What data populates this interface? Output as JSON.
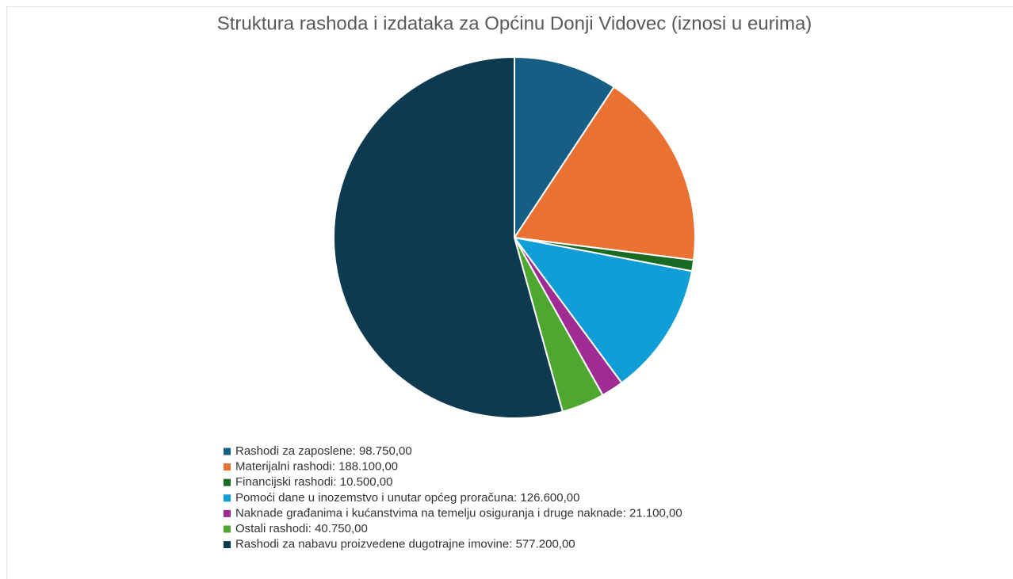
{
  "chart_data": {
    "type": "pie",
    "title": "Struktura rashoda i izdataka za Općinu Donji Vidovec (iznosi u eurima)",
    "categories": [
      "Rashodi za zaposlene",
      "Materijalni rashodi",
      "Financijski rashodi",
      "Pomoći dane u inozemstvo i unutar općeg proračuna",
      "Naknade građanima i kućanstvima na temelju osiguranja i druge naknade",
      "Ostali rashodi",
      "Rashodi za nabavu proizvedene dugotrajne imovine"
    ],
    "values": [
      98750,
      188100,
      10500,
      126600,
      21100,
      40750,
      577200
    ],
    "value_labels": [
      "98.750,00",
      "188.100,00",
      "10.500,00",
      "126.600,00",
      "21.100,00",
      "40.750,00",
      "577.200,00"
    ],
    "colors": [
      "#175e84",
      "#e97132",
      "#196b24",
      "#0f9ed5",
      "#a02b93",
      "#4ea72e",
      "#0e3a50"
    ],
    "legend": "bottom"
  }
}
